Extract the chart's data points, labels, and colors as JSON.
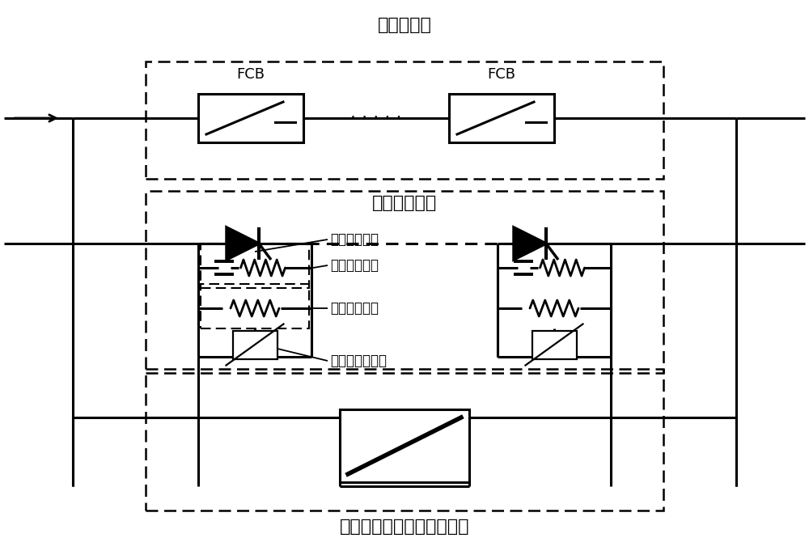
{
  "bg_color": "#ffffff",
  "line_color": "#000000",
  "labels": {
    "main_current": "主电流支路",
    "main_breaker": "主断路器支路",
    "overvoltage": "过电压限制和能量吸收支路",
    "power_electronics": "电力电子器件",
    "dynamic_voltage": "动态均压支路",
    "static_voltage": "静态均压支路",
    "overvoltage_protection": "过电压保护支路",
    "FCB": "FCB"
  },
  "font_size_title": 16,
  "font_size_label": 13,
  "font_size_annot": 12
}
